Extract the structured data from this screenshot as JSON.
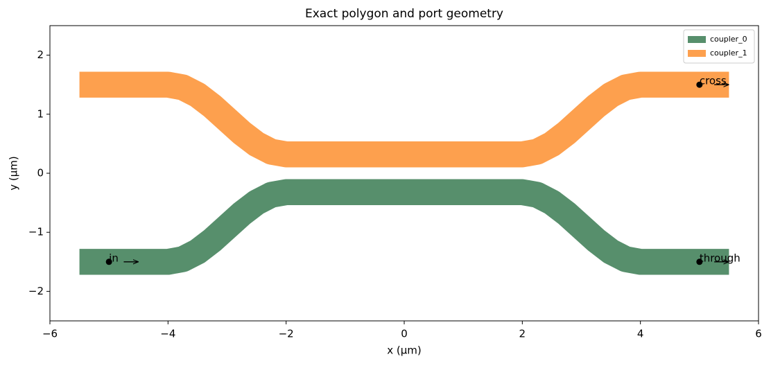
{
  "chart_data": {
    "type": "waveguide",
    "title": "Exact polygon and port geometry",
    "xlabel": "x (µm)",
    "ylabel": "y (µm)",
    "xlim": [
      -6,
      6
    ],
    "ylim": [
      -2.5,
      2.5
    ],
    "xticks": [
      {
        "value": -6,
        "label": "−6"
      },
      {
        "value": -4,
        "label": "−4"
      },
      {
        "value": -2,
        "label": "−2"
      },
      0,
      2,
      4,
      6
    ],
    "yticks": [
      {
        "value": -2,
        "label": "−2"
      },
      {
        "value": -1,
        "label": "−1"
      },
      0,
      1,
      2
    ],
    "legend": "upper right",
    "series": [
      {
        "name": "coupler_0",
        "color": "#578f6c",
        "width": 0.44,
        "x": [
          -5.5,
          -4,
          -3.75,
          -3.5,
          -3.25,
          -3,
          -2.75,
          -2.5,
          -2.25,
          -2,
          2,
          2.25,
          2.5,
          2.75,
          3,
          3.25,
          3.5,
          3.75,
          4,
          5.5
        ],
        "values": [
          -1.5,
          -1.5,
          -1.455,
          -1.327,
          -1.136,
          -0.91,
          -0.684,
          -0.493,
          -0.365,
          -0.32,
          -0.32,
          -0.365,
          -0.493,
          -0.684,
          -0.91,
          -1.136,
          -1.327,
          -1.455,
          -1.5,
          -1.5
        ]
      },
      {
        "name": "coupler_1",
        "color": "#fda04e",
        "width": 0.44,
        "x": [
          -5.5,
          -4,
          -3.75,
          -3.5,
          -3.25,
          -3,
          -2.75,
          -2.5,
          -2.25,
          -2,
          2,
          2.25,
          2.5,
          2.75,
          3,
          3.25,
          3.5,
          3.75,
          4,
          5.5
        ],
        "values": [
          1.5,
          1.5,
          1.455,
          1.327,
          1.136,
          0.91,
          0.684,
          0.493,
          0.365,
          0.32,
          0.32,
          0.365,
          0.493,
          0.684,
          0.91,
          1.136,
          1.327,
          1.455,
          1.5,
          1.5
        ]
      }
    ],
    "ports": [
      {
        "label": "in",
        "x": -5,
        "y": -1.5
      },
      {
        "label": "through",
        "x": 5,
        "y": -1.5
      },
      {
        "label": "cross",
        "x": 5,
        "y": 1.5
      }
    ]
  }
}
